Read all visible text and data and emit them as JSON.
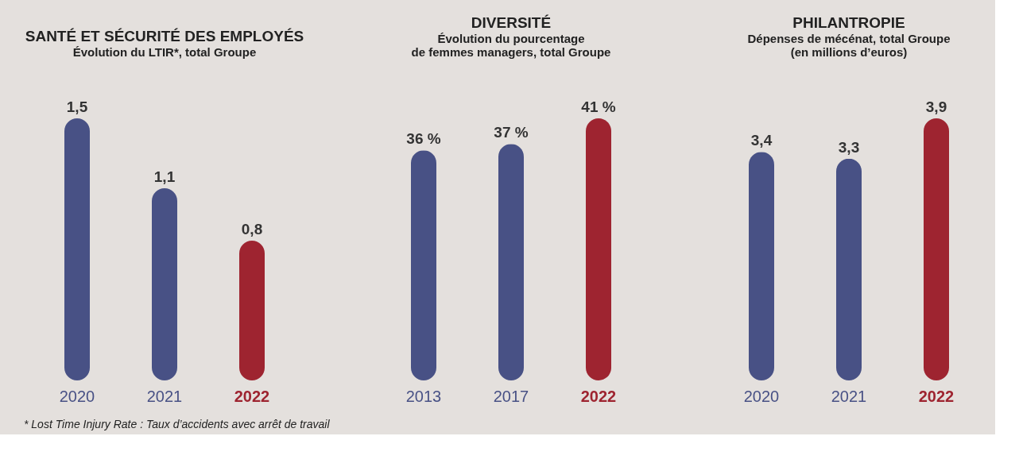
{
  "chart_data": [
    {
      "type": "bar",
      "title": "SANTÉ ET SÉCURITÉ DES EMPLOYÉS",
      "subtitle": "Évolution du LTIR*, total Groupe",
      "categories": [
        "2020",
        "2021",
        "2022"
      ],
      "values": [
        1.5,
        1.1,
        0.8
      ],
      "colors": [
        "#485185",
        "#485185",
        "#9e2430"
      ],
      "value_labels": [
        "1,5",
        "1,1",
        "0,8"
      ],
      "annotations": [
        "* Lost Time Injury Rate : Taux d’accidents avec arrêt de travail"
      ]
    },
    {
      "type": "bar",
      "title": "DIVERSITÉ",
      "subtitle": "Évolution du pourcentage\nde femmes managers, total Groupe",
      "categories": [
        "2013",
        "2017",
        "2022"
      ],
      "values": [
        36,
        37,
        41
      ],
      "colors": [
        "#485185",
        "#485185",
        "#9e2430"
      ],
      "value_labels": [
        "36 %",
        "37 %",
        "41 %"
      ]
    },
    {
      "type": "bar",
      "title": "PHILANTROPIE",
      "subtitle": "Dépenses de mécénat, total Groupe\n(en millions d’euros)",
      "categories": [
        "2020",
        "2021",
        "2022"
      ],
      "values": [
        3.4,
        3.3,
        3.9
      ],
      "colors": [
        "#485185",
        "#485185",
        "#9e2430"
      ],
      "value_labels": [
        "3,4",
        "3,3",
        "3,9"
      ]
    }
  ]
}
